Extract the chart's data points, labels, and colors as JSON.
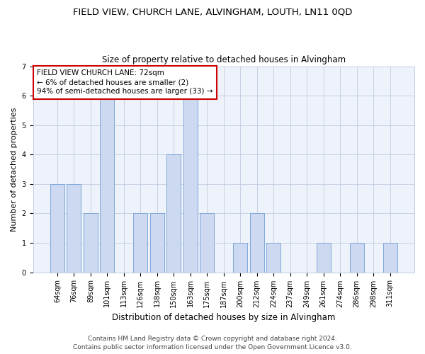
{
  "title": "FIELD VIEW, CHURCH LANE, ALVINGHAM, LOUTH, LN11 0QD",
  "subtitle": "Size of property relative to detached houses in Alvingham",
  "xlabel": "Distribution of detached houses by size in Alvingham",
  "ylabel": "Number of detached properties",
  "categories": [
    "64sqm",
    "76sqm",
    "89sqm",
    "101sqm",
    "113sqm",
    "126sqm",
    "138sqm",
    "150sqm",
    "163sqm",
    "175sqm",
    "187sqm",
    "200sqm",
    "212sqm",
    "224sqm",
    "237sqm",
    "249sqm",
    "261sqm",
    "274sqm",
    "286sqm",
    "298sqm",
    "311sqm"
  ],
  "values": [
    3,
    3,
    2,
    6,
    0,
    2,
    2,
    4,
    6,
    2,
    0,
    1,
    2,
    1,
    0,
    0,
    1,
    0,
    1,
    0,
    1
  ],
  "bar_color": "#ccd9f0",
  "bar_edge_color": "#7fa8d8",
  "annotation_box_text": "FIELD VIEW CHURCH LANE: 72sqm\n← 6% of detached houses are smaller (2)\n94% of semi-detached houses are larger (33) →",
  "annotation_box_color": "white",
  "annotation_box_edge_color": "#cc0000",
  "ylim_max": 7,
  "yticks": [
    0,
    1,
    2,
    3,
    4,
    5,
    6,
    7
  ],
  "footer_line1": "Contains HM Land Registry data © Crown copyright and database right 2024.",
  "footer_line2": "Contains public sector information licensed under the Open Government Licence v3.0.",
  "bg_color": "#eef2fb",
  "title_fontsize": 9.5,
  "subtitle_fontsize": 8.5,
  "xlabel_fontsize": 8.5,
  "ylabel_fontsize": 8,
  "tick_fontsize": 7,
  "annotation_fontsize": 7.5,
  "footer_fontsize": 6.5
}
